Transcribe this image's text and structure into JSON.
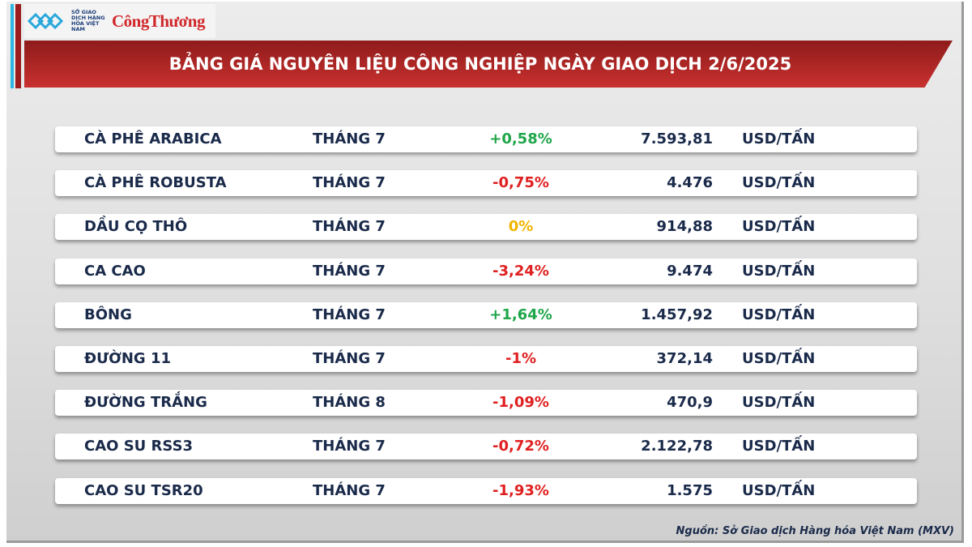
{
  "logo": {
    "org_text": "SỞ GIAO DỊCH HÀNG HÓA VIỆT NAM",
    "brand": "CôngThương"
  },
  "header": {
    "title": "BẢNG GIÁ NGUYÊN LIỆU CÔNG NGHIỆP NGÀY GIAO DỊCH 2/6/2025"
  },
  "colors": {
    "up": "#1fa64a",
    "down": "#e02020",
    "flat": "#f0b400",
    "header": "#b52a28",
    "text": "#1a2a4a"
  },
  "rows": [
    {
      "name": "CÀ PHÊ ARABICA",
      "month": "THÁNG 7",
      "change": "+0,58%",
      "trend": "up",
      "price": "7.593,81",
      "unit": "USD/TẤN"
    },
    {
      "name": "CÀ PHÊ ROBUSTA",
      "month": "THÁNG 7",
      "change": "-0,75%",
      "trend": "down",
      "price": "4.476",
      "unit": "USD/TẤN"
    },
    {
      "name": "DẦU CỌ THÔ",
      "month": "THÁNG 7",
      "change": "0%",
      "trend": "flat",
      "price": "914,88",
      "unit": "USD/TẤN"
    },
    {
      "name": "CA CAO",
      "month": "THÁNG 7",
      "change": "-3,24%",
      "trend": "down",
      "price": "9.474",
      "unit": "USD/TẤN"
    },
    {
      "name": "BÔNG",
      "month": "THÁNG 7",
      "change": "+1,64%",
      "trend": "up",
      "price": "1.457,92",
      "unit": "USD/TẤN"
    },
    {
      "name": "ĐƯỜNG 11",
      "month": "THÁNG 7",
      "change": "-1%",
      "trend": "down",
      "price": "372,14",
      "unit": "USD/TẤN"
    },
    {
      "name": "ĐƯỜNG TRẮNG",
      "month": "THÁNG 8",
      "change": "-1,09%",
      "trend": "down",
      "price": "470,9",
      "unit": "USD/TẤN"
    },
    {
      "name": "CAO SU RSS3",
      "month": "THÁNG 7",
      "change": "-0,72%",
      "trend": "down",
      "price": "2.122,78",
      "unit": "USD/TẤN"
    },
    {
      "name": "CAO SU TSR20",
      "month": "THÁNG 7",
      "change": "-1,93%",
      "trend": "down",
      "price": "1.575",
      "unit": "USD/TẤN"
    }
  ],
  "footer": {
    "source": "Nguồn: Sở Giao dịch Hàng hóa Việt Nam (MXV)"
  }
}
